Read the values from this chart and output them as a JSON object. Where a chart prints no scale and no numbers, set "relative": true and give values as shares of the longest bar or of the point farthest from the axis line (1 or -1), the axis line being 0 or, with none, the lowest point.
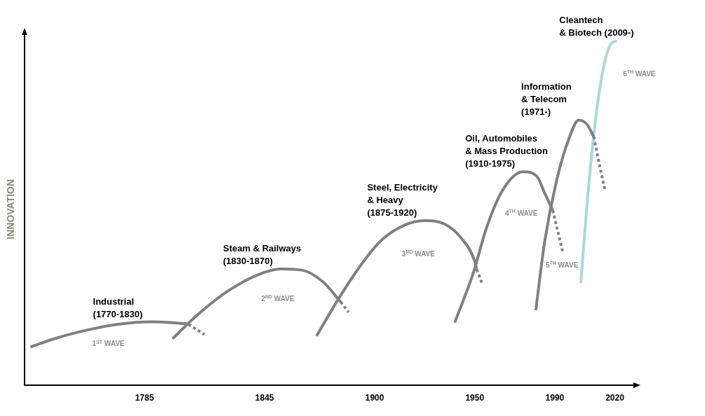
{
  "chart_data": {
    "type": "line",
    "relative": true,
    "ylabel": "INNOVATION",
    "xlim": [
      1725,
      2030
    ],
    "xticks": [
      1785,
      1845,
      1900,
      1950,
      1990,
      2020
    ],
    "grid": false,
    "legend": false,
    "marker": "none",
    "line_style": "solid",
    "series": [
      {
        "name": "Industrial\n(1770-1830)",
        "color": "#808080",
        "x": [
          1728,
          1741,
          1757,
          1772,
          1788,
          1806
        ],
        "values": [
          0.11,
          0.136,
          0.16,
          0.176,
          0.183,
          0.178
        ]
      },
      {
        "color": "#808080",
        "line_style": "dotted",
        "x": [
          1807,
          1815
        ],
        "values": [
          0.176,
          0.146
        ]
      },
      {
        "name": "Steam & Railways\n(1830-1870)",
        "color": "#808080",
        "x": [
          1799,
          1811,
          1827,
          1843,
          1853,
          1864,
          1874,
          1883
        ],
        "values": [
          0.134,
          0.201,
          0.274,
          0.323,
          0.337,
          0.333,
          0.3,
          0.241
        ]
      },
      {
        "color": "#808080",
        "line_style": "dotted",
        "x": [
          1883,
          1887
        ],
        "values": [
          0.241,
          0.211
        ]
      },
      {
        "name": "Steel, Electricity\n& Heavy\n(1875-1920)",
        "color": "#808080",
        "x": [
          1871,
          1881,
          1892,
          1903,
          1915,
          1925,
          1935,
          1943,
          1950,
          1951
        ],
        "values": [
          0.142,
          0.241,
          0.339,
          0.418,
          0.464,
          0.477,
          0.467,
          0.428,
          0.359,
          0.335
        ]
      },
      {
        "color": "#808080",
        "line_style": "dotted",
        "x": [
          1951,
          1954
        ],
        "values": [
          0.335,
          0.29
        ]
      },
      {
        "name": "Oil, Automobiles\n& Mass Production\n(1910-1975)",
        "color": "#808080",
        "x": [
          1940,
          1949,
          1956,
          1964,
          1974,
          1981,
          1985,
          1989
        ],
        "values": [
          0.181,
          0.32,
          0.458,
          0.566,
          0.619,
          0.606,
          0.556,
          0.507
        ]
      },
      {
        "color": "#808080",
        "line_style": "dotted",
        "x": [
          1989,
          1994
        ],
        "values": [
          0.507,
          0.385
        ]
      },
      {
        "name": "Information\n& Telecom\n(1971-)",
        "color": "#808080",
        "x": [
          1980.5,
          1985,
          1991,
          1997,
          2002,
          2006,
          2010
        ],
        "values": [
          0.217,
          0.418,
          0.596,
          0.714,
          0.769,
          0.757,
          0.714
        ]
      },
      {
        "color": "#808080",
        "line_style": "dotted",
        "x": [
          2010,
          2015
        ],
        "values": [
          0.704,
          0.566
        ]
      },
      {
        "name": "Cleantech\n& Biotech (2009-)",
        "color": "#a8d8de",
        "x": [
          2003,
          2006,
          2010,
          2014,
          2017.6,
          2021
        ],
        "values": [
          0.296,
          0.517,
          0.753,
          0.911,
          0.986,
          1
        ]
      }
    ],
    "annotations": [
      "1$^{ST}$ WAVE",
      "2$^{ND}$ WAVE",
      "3$^{RD}$ WAVE",
      "4$^{TH}$ WAVE",
      "5$^{TH}$ WAVE",
      "6$^{TH}$ WAVE"
    ]
  }
}
